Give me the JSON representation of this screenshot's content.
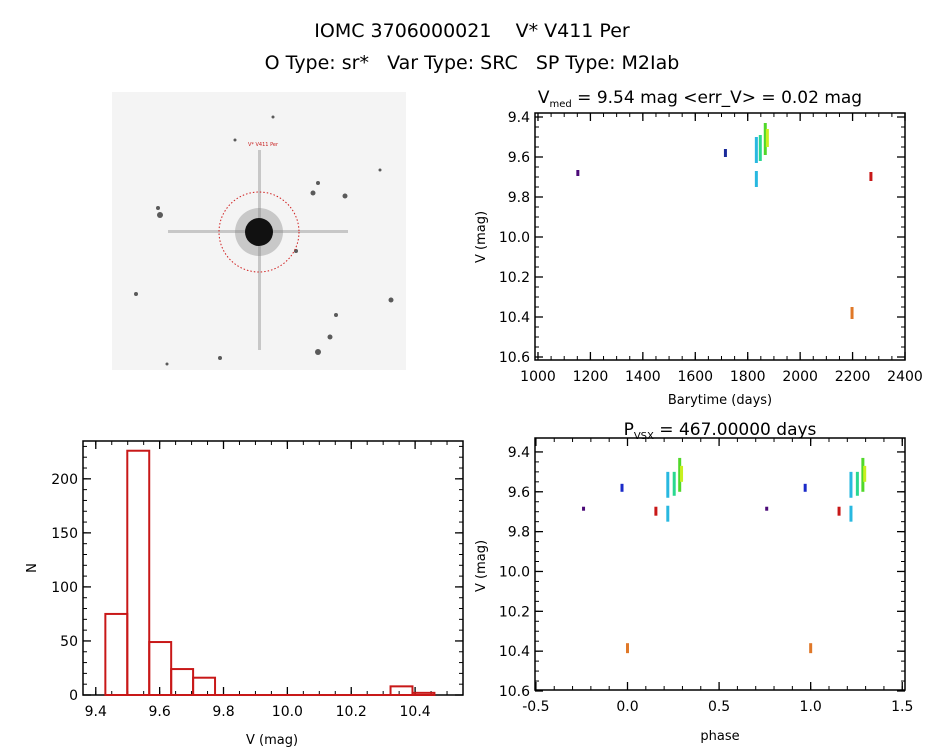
{
  "header": {
    "line1": "IOMC 3706000021    V* V411 Per",
    "line2": "O Type: sr*   Var Type: SRC   SP Type: M2Iab"
  },
  "image_panel": {
    "target_label": "V* V411 Per"
  },
  "chart_data": [
    {
      "id": "light_curve",
      "type": "scatter",
      "title_main": "V",
      "title_sub": "med",
      "title_rest": " = 9.54 mag <err_V> = 0.02 mag",
      "xlabel": "Barytime (days)",
      "ylabel": "V (mag)",
      "xlim": [
        1000,
        2400
      ],
      "ylim": [
        10.6,
        9.4
      ],
      "y_inverted": true,
      "xticks": [
        "1000",
        "1200",
        "1400",
        "1600",
        "1800",
        "2000",
        "2200",
        "2400"
      ],
      "yticks": [
        "9.4",
        "9.6",
        "9.8",
        "10.0",
        "10.2",
        "10.4",
        "10.6"
      ],
      "points": [
        {
          "x": 1152,
          "vmin": 9.665,
          "vmax": 9.695,
          "color": "#4b0a78"
        },
        {
          "x": 1715,
          "vmin": 9.56,
          "vmax": 9.6,
          "color": "#1a2a9a"
        },
        {
          "x": 1833,
          "vmin": 9.5,
          "vmax": 9.63,
          "color": "#28b8e0"
        },
        {
          "x": 1833,
          "vmin": 9.67,
          "vmax": 9.75,
          "color": "#28b8e0"
        },
        {
          "x": 1848,
          "vmin": 9.49,
          "vmax": 9.62,
          "color": "#2ad890"
        },
        {
          "x": 1867,
          "vmin": 9.43,
          "vmax": 9.59,
          "color": "#50d82a"
        },
        {
          "x": 1875,
          "vmin": 9.46,
          "vmax": 9.55,
          "color": "#c8f020"
        },
        {
          "x": 2198,
          "vmin": 10.35,
          "vmax": 10.41,
          "color": "#e07828"
        },
        {
          "x": 2270,
          "vmin": 9.675,
          "vmax": 9.72,
          "color": "#c81818"
        }
      ]
    },
    {
      "id": "histogram",
      "type": "bar",
      "xlabel": "V (mag)",
      "ylabel": "N",
      "xlim": [
        9.36,
        10.55
      ],
      "ylim": [
        0,
        235
      ],
      "xticks": [
        "9.4",
        "9.6",
        "9.8",
        "10.0",
        "10.2",
        "10.4"
      ],
      "yticks": [
        "0",
        "50",
        "100",
        "150",
        "200"
      ],
      "bin_start": 9.43,
      "bin_width": 0.0687,
      "counts": [
        75,
        226,
        49,
        24,
        16,
        0,
        0,
        0,
        0,
        0,
        0,
        0,
        0,
        8,
        2
      ],
      "color": "#c81818"
    },
    {
      "id": "phase_curve",
      "type": "scatter",
      "title_main": "P",
      "title_sub": "VSX",
      "title_rest": " = 467.00000 days",
      "xlabel": "phase",
      "ylabel": "V (mag)",
      "xlim": [
        -0.5,
        1.5
      ],
      "ylim": [
        10.6,
        9.4
      ],
      "y_inverted": true,
      "xticks": [
        "-0.5",
        "0.0",
        "0.5",
        "1.0",
        "1.5"
      ],
      "yticks": [
        "9.4",
        "9.6",
        "9.8",
        "10.0",
        "10.2",
        "10.4",
        "10.6"
      ],
      "points": [
        {
          "x": -0.24,
          "vmin": 9.675,
          "vmax": 9.695,
          "color": "#4b0a78"
        },
        {
          "x": 0.76,
          "vmin": 9.675,
          "vmax": 9.695,
          "color": "#4b0a78"
        },
        {
          "x": -0.03,
          "vmin": 9.56,
          "vmax": 9.6,
          "color": "#1a2ac8"
        },
        {
          "x": 0.97,
          "vmin": 9.56,
          "vmax": 9.6,
          "color": "#1a2ac8"
        },
        {
          "x": 0.0,
          "vmin": 10.36,
          "vmax": 10.41,
          "color": "#e07828"
        },
        {
          "x": 1.0,
          "vmin": 10.36,
          "vmax": 10.41,
          "color": "#e07828"
        },
        {
          "x": 0.155,
          "vmin": 9.675,
          "vmax": 9.72,
          "color": "#c81818"
        },
        {
          "x": 1.155,
          "vmin": 9.675,
          "vmax": 9.72,
          "color": "#c81818"
        },
        {
          "x": 0.22,
          "vmin": 9.5,
          "vmax": 9.63,
          "color": "#28b8e0"
        },
        {
          "x": 0.22,
          "vmin": 9.67,
          "vmax": 9.75,
          "color": "#28b8e0"
        },
        {
          "x": 1.22,
          "vmin": 9.5,
          "vmax": 9.63,
          "color": "#28b8e0"
        },
        {
          "x": 1.22,
          "vmin": 9.67,
          "vmax": 9.75,
          "color": "#28b8e0"
        },
        {
          "x": 0.255,
          "vmin": 9.5,
          "vmax": 9.62,
          "color": "#2ad890"
        },
        {
          "x": 1.255,
          "vmin": 9.5,
          "vmax": 9.62,
          "color": "#2ad890"
        },
        {
          "x": 0.285,
          "vmin": 9.43,
          "vmax": 9.6,
          "color": "#50d82a"
        },
        {
          "x": 1.285,
          "vmin": 9.43,
          "vmax": 9.6,
          "color": "#50d82a"
        },
        {
          "x": 0.295,
          "vmin": 9.47,
          "vmax": 9.55,
          "color": "#c8f020"
        },
        {
          "x": 1.295,
          "vmin": 9.47,
          "vmax": 9.55,
          "color": "#c8f020"
        }
      ]
    }
  ]
}
